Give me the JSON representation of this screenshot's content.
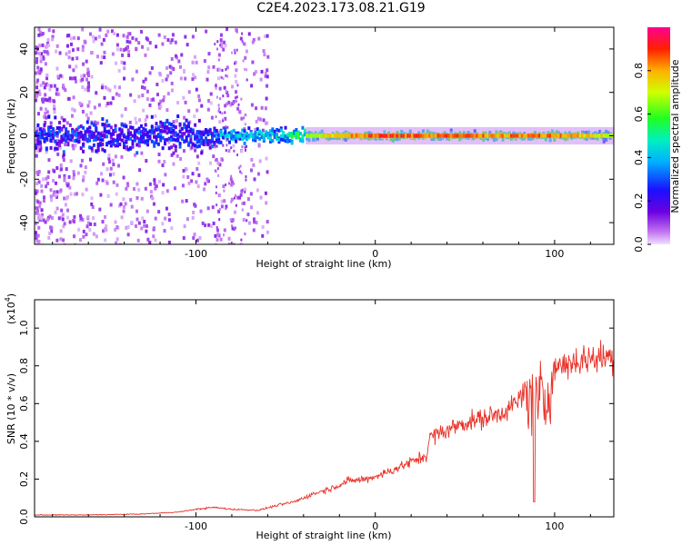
{
  "title": "C2E4.2023.173.08.21.G19",
  "chart_data": [
    {
      "type": "heatmap",
      "name": "spectrogram",
      "xlabel": "Height of straight line (km)",
      "ylabel": "Frequency (Hz)",
      "xlim": [
        -190,
        133
      ],
      "ylim": [
        -50,
        50
      ],
      "xticks": [
        -100,
        0,
        100
      ],
      "yticks": [
        -40,
        -20,
        0,
        20,
        40
      ],
      "colorbar": {
        "label": "Normalized spectral amplitude",
        "range": [
          0,
          1
        ],
        "ticks": [
          0.0,
          0.2,
          0.4,
          0.6,
          0.8
        ]
      },
      "ridge": {
        "frequency_center": 0,
        "description_points_x": [
          -190,
          -100,
          -85,
          -50,
          -20,
          0,
          50,
          100,
          133
        ],
        "peak_amplitude": [
          0.25,
          0.3,
          0.5,
          0.6,
          0.85,
          0.95,
          0.9,
          0.9,
          0.75
        ]
      }
    },
    {
      "type": "line",
      "name": "snr",
      "xlabel": "Height of straight line (km)",
      "ylabel": "SNR (10 * v/v)",
      "scale_note": "(x10",
      "scale_exp": "4",
      "scale_close": ")",
      "xlim": [
        -190,
        133
      ],
      "ylim": [
        0,
        1.15
      ],
      "xticks": [
        -100,
        0,
        100
      ],
      "yticks": [
        0.0,
        0.2,
        0.4,
        0.6,
        0.8,
        1.0
      ],
      "color": "#e8332a",
      "series": [
        {
          "x": [
            -190,
            -160,
            -130,
            -110,
            -100,
            -90,
            -80,
            -65,
            -55,
            -45,
            -35,
            -25,
            -15,
            -5,
            5,
            15,
            25,
            29,
            30,
            40,
            50,
            60,
            70,
            78,
            85,
            88,
            90,
            92,
            95,
            98,
            100,
            110,
            120,
            133
          ],
          "values": [
            0.01,
            0.01,
            0.015,
            0.025,
            0.04,
            0.05,
            0.04,
            0.035,
            0.06,
            0.08,
            0.12,
            0.15,
            0.19,
            0.2,
            0.23,
            0.27,
            0.31,
            0.33,
            0.42,
            0.46,
            0.5,
            0.52,
            0.55,
            0.6,
            0.65,
            0.6,
            0.58,
            0.62,
            0.6,
            0.72,
            0.79,
            0.82,
            0.84,
            0.85
          ]
        }
      ]
    }
  ]
}
